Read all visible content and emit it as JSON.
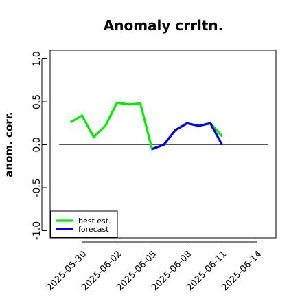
{
  "chart_data": {
    "type": "line",
    "title": "Anomaly crrltn.",
    "xlabel": "",
    "ylabel": "anom. corr.",
    "ylim": [
      -1.0,
      1.0
    ],
    "yticks": [
      "-1.0",
      "-0.5",
      "0.0",
      "0.5",
      "1.0"
    ],
    "xticks": [
      {
        "label": "2025-05-30",
        "color": "#000000"
      },
      {
        "label": "2025-06-02",
        "color": "#000000"
      },
      {
        "label": "2025-06-05",
        "color": "#2e8b2e"
      },
      {
        "label": "2025-06-08",
        "color": "#000000"
      },
      {
        "label": "2025-06-11",
        "color": "#000000"
      },
      {
        "label": "2025-06-14",
        "color": "#000000"
      }
    ],
    "x": [
      "2025-05-29",
      "2025-05-30",
      "2025-05-31",
      "2025-06-01",
      "2025-06-02",
      "2025-06-03",
      "2025-06-04",
      "2025-06-05",
      "2025-06-06",
      "2025-06-07",
      "2025-06-08",
      "2025-06-09",
      "2025-06-10",
      "2025-06-11"
    ],
    "series": [
      {
        "name": "best est.",
        "color": "#00ee00",
        "values": [
          0.26,
          0.34,
          0.09,
          0.22,
          0.49,
          0.47,
          0.48,
          -0.05,
          0.0,
          0.17,
          0.25,
          0.22,
          0.25,
          0.1
        ]
      },
      {
        "name": "forecast",
        "color": "#0000ee",
        "values": [
          null,
          null,
          null,
          null,
          null,
          null,
          null,
          -0.05,
          0.0,
          0.17,
          0.25,
          0.22,
          0.25,
          0.0
        ]
      }
    ],
    "hline": 0.0,
    "legend": "bottom-left",
    "grid": false
  }
}
